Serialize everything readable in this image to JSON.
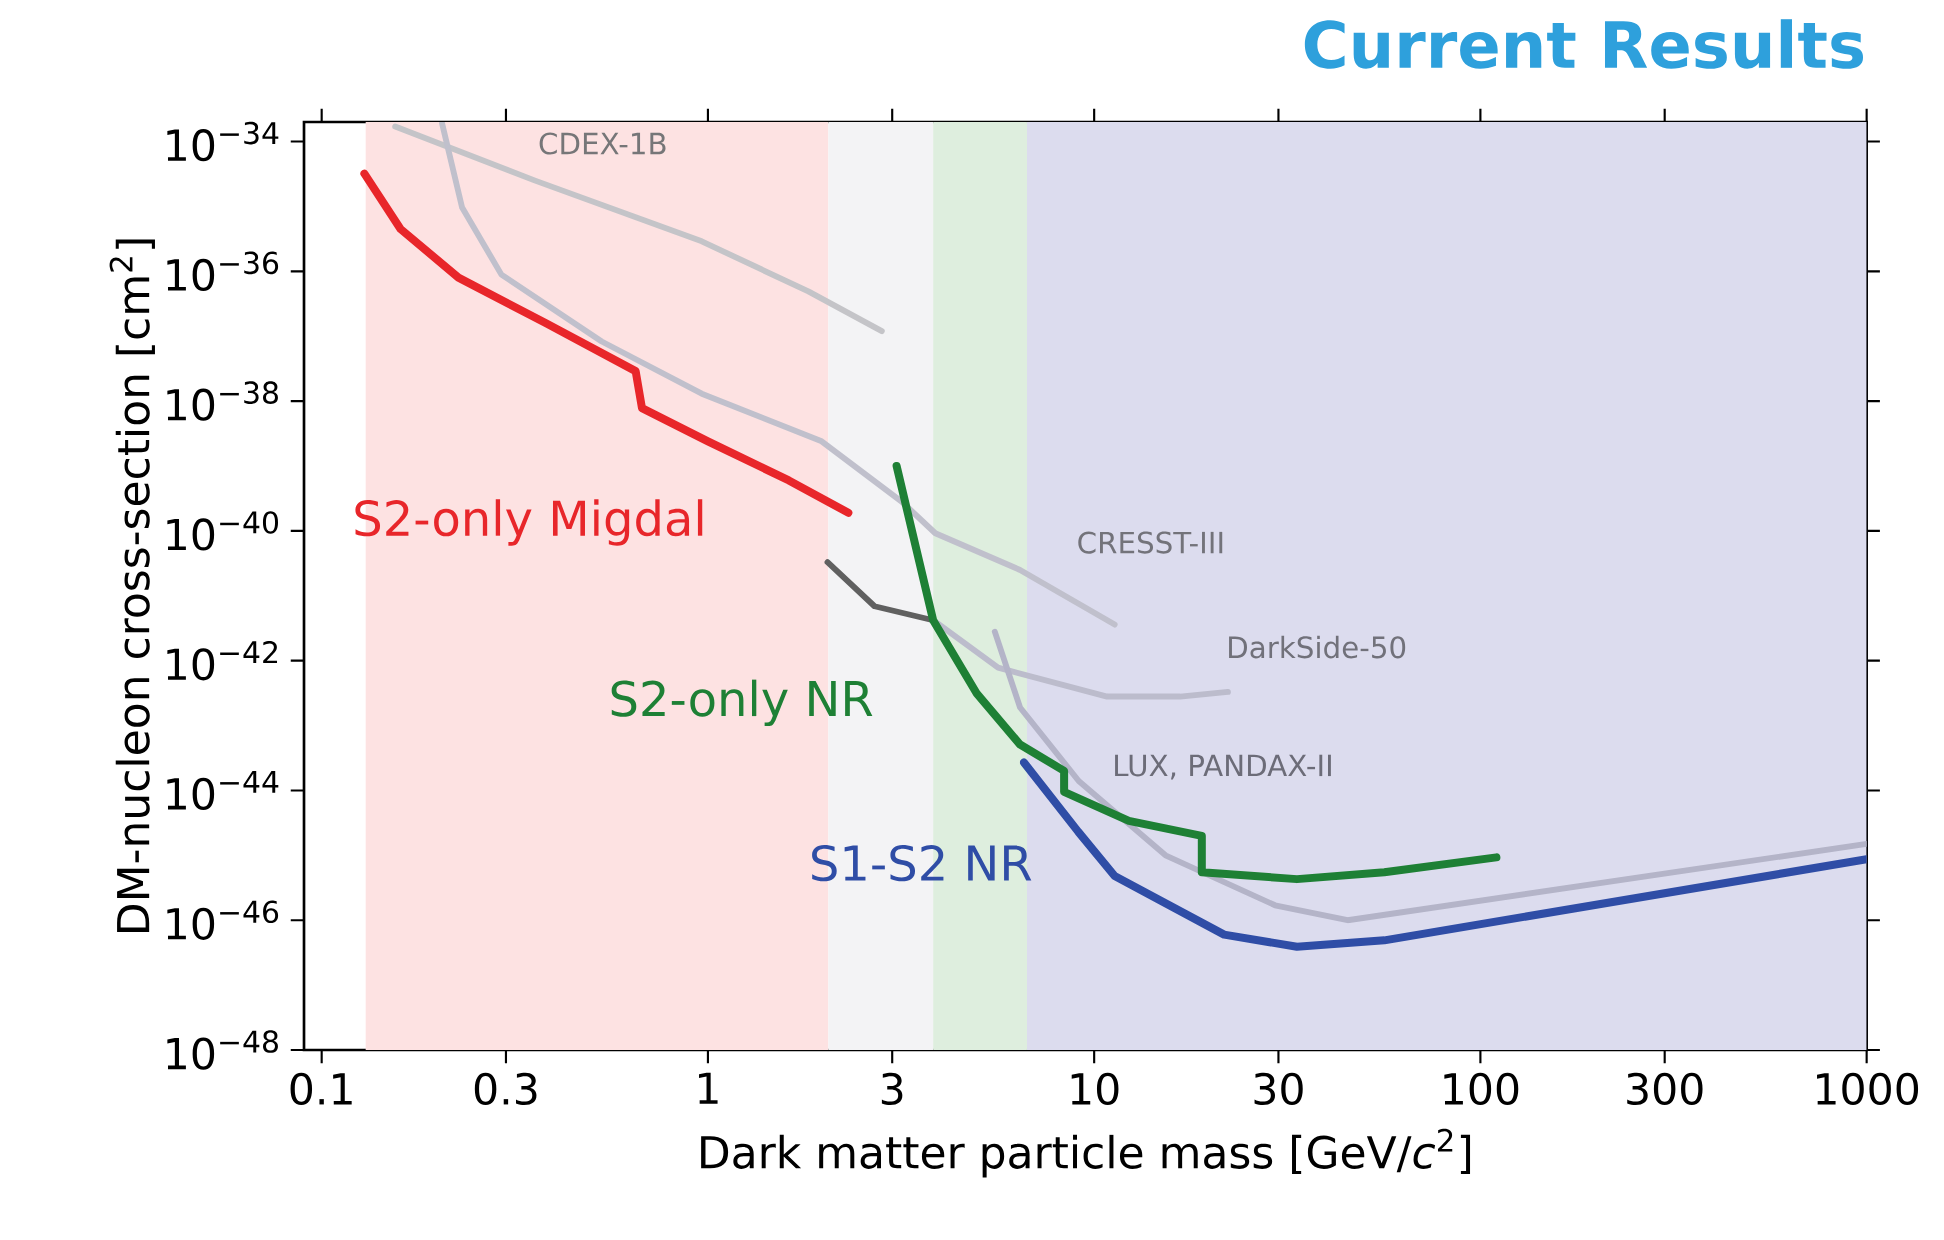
{
  "chart_data": {
    "type": "line",
    "title": "Current Results",
    "xlabel": "Dark matter particle mass [GeV/*c*$^{2}$]",
    "ylabel": "DM-nucleon cross-section [cm$^{2}$]",
    "log": "xy",
    "grid": false,
    "legend": false,
    "xlim": [
      0.09,
      1000
    ],
    "ylim": [
      1e-48,
      2e-34
    ],
    "xticks": [
      0.1,
      0.3,
      1,
      3,
      10,
      30,
      100,
      300,
      1000
    ],
    "yticks": [
      {
        "value": 1e-34,
        "label": "10$^{−34}$"
      },
      {
        "value": 1e-36,
        "label": "10$^{−36}$"
      },
      {
        "value": 1e-38,
        "label": "10$^{−38}$"
      },
      {
        "value": 1e-40,
        "label": "10$^{−40}$"
      },
      {
        "value": 1e-42,
        "label": "10$^{−42}$"
      },
      {
        "value": 1e-44,
        "label": "10$^{−44}$"
      },
      {
        "value": 1e-46,
        "label": "10$^{−46}$"
      },
      {
        "value": 1e-48,
        "label": "10$^{−48}$"
      }
    ],
    "bands": [
      {
        "axis": "x",
        "from": 0.13,
        "to": 2.05,
        "color": "#fde2e2"
      },
      {
        "axis": "x",
        "from": 2.05,
        "to": 3.83,
        "color": "#f3f3f5"
      },
      {
        "axis": "x",
        "from": 3.83,
        "to": 6.7,
        "color": "#deeede"
      },
      {
        "axis": "x",
        "from": 6.7,
        "to": 1000,
        "color": "#dcdcee"
      }
    ],
    "series": [
      {
        "name": "CDEX-1B",
        "color": "#c4c4c8",
        "x": [
          0.155,
          0.357,
          0.964,
          1.82,
          2.82
        ],
        "values": [
          1.7e-34,
          2.5e-35,
          2.9e-36,
          4.9e-37,
          1.2e-37
        ]
      },
      {
        "name": "CRESST-III",
        "color": "#c0c0cc",
        "x": [
          0.205,
          0.231,
          0.292,
          0.531,
          0.964,
          1.97,
          3.18,
          3.88,
          6.43,
          11.3
        ],
        "values": [
          1.9e-34,
          9.6e-36,
          8.9e-37,
          8.3e-38,
          1.3e-38,
          2.4e-39,
          2.8e-40,
          9.2e-41,
          2.5e-41,
          3.6e-42
        ]
      },
      {
        "color": "#606060",
        "x": [
          2.04,
          2.7,
          3.83
        ],
        "values": [
          3.3e-41,
          6.9e-42,
          4.2e-42
        ]
      },
      {
        "name": "DarkSide-50",
        "color": "#bcbccc",
        "x": [
          3.83,
          5.64,
          10.8,
          16.7,
          22.2
        ],
        "values": [
          4.2e-42,
          7.8e-43,
          2.8e-43,
          2.8e-43,
          3.3e-43
        ]
      },
      {
        "name": "LUX, PANDAX-II",
        "color": "#b4b4c8",
        "x": [
          5.53,
          6.43,
          9.12,
          15.3,
          29.4,
          45.3,
          1000
        ],
        "values": [
          2.8e-42,
          1.9e-43,
          1.4e-44,
          1e-45,
          1.7e-46,
          1e-46,
          1.5e-45
        ]
      },
      {
        "name": "S2-only Migdal",
        "color": "#e8262a",
        "x": [
          0.129,
          0.16,
          0.226,
          0.38,
          0.65,
          0.675,
          1.0,
          1.62,
          2.31
        ],
        "values": [
          3.2e-35,
          4.5e-36,
          8e-37,
          1.6e-37,
          2.9e-38,
          7.8e-39,
          2.4e-39,
          6e-40,
          1.9e-40
        ]
      },
      {
        "name": "S2-only NR",
        "color": "#1e8035",
        "x": [
          3.08,
          3.83,
          4.97,
          6.43,
          8.36,
          8.36,
          12.3,
          19.0,
          19.0,
          33.5,
          56.4,
          110
        ],
        "values": [
          1e-39,
          4.2e-42,
          3.1e-43,
          5.1e-44,
          2e-44,
          9.5e-45,
          3.4e-45,
          2e-45,
          5.5e-46,
          4.3e-46,
          5.5e-46,
          9.3e-46
        ]
      },
      {
        "name": "S1-S2 NR",
        "color": "#2f4da6",
        "x": [
          6.58,
          9.1,
          11.3,
          21.7,
          33.5,
          56.4,
          1000
        ],
        "values": [
          2.7e-44,
          2.3e-45,
          4.8e-46,
          6e-47,
          3.9e-47,
          4.9e-47,
          8.7e-46
        ]
      }
    ]
  }
}
